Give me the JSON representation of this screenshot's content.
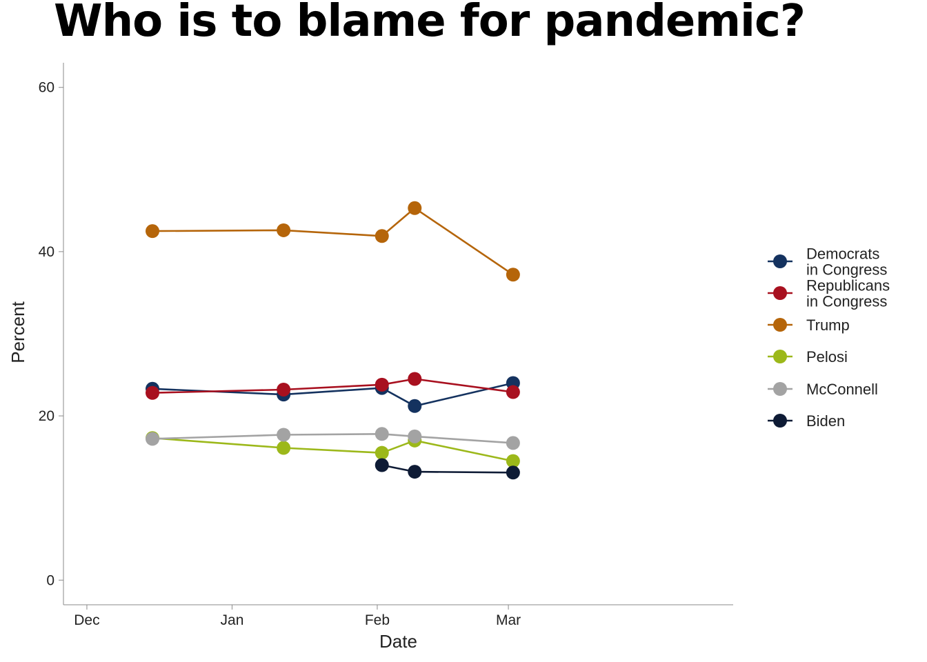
{
  "chart_data": {
    "type": "line",
    "title": "Who is to blame for pandemic?",
    "xlabel": "Date",
    "ylabel": "Percent",
    "x_ticks": [
      "Dec",
      "Jan",
      "Feb",
      "Mar"
    ],
    "x_tick_dates": [
      "2020-12-01",
      "2021-01-01",
      "2021-02-01",
      "2021-03-01"
    ],
    "xlim": [
      "2020-11-26",
      "2021-04-18"
    ],
    "y_ticks": [
      0,
      20,
      40,
      60
    ],
    "ylim": [
      -3,
      63
    ],
    "grid": false,
    "legend_position": "right",
    "series": [
      {
        "name": "Democrats\nin Congress",
        "color": "#14325F",
        "points": [
          {
            "date": "2020-12-15",
            "value": 23.3
          },
          {
            "date": "2021-01-12",
            "value": 22.6
          },
          {
            "date": "2021-02-02",
            "value": 23.4
          },
          {
            "date": "2021-02-09",
            "value": 21.2
          },
          {
            "date": "2021-03-02",
            "value": 24.0
          }
        ]
      },
      {
        "name": "Republicans\nin Congress",
        "color": "#A8101F",
        "points": [
          {
            "date": "2020-12-15",
            "value": 22.8
          },
          {
            "date": "2021-01-12",
            "value": 23.2
          },
          {
            "date": "2021-02-02",
            "value": 23.8
          },
          {
            "date": "2021-02-09",
            "value": 24.5
          },
          {
            "date": "2021-03-02",
            "value": 22.9
          }
        ]
      },
      {
        "name": "Trump",
        "color": "#B5650A",
        "points": [
          {
            "date": "2020-12-15",
            "value": 42.5
          },
          {
            "date": "2021-01-12",
            "value": 42.6
          },
          {
            "date": "2021-02-02",
            "value": 41.9
          },
          {
            "date": "2021-02-09",
            "value": 45.3
          },
          {
            "date": "2021-03-02",
            "value": 37.2
          }
        ]
      },
      {
        "name": "Pelosi",
        "color": "#9CB81A",
        "points": [
          {
            "date": "2020-12-15",
            "value": 17.3
          },
          {
            "date": "2021-01-12",
            "value": 16.1
          },
          {
            "date": "2021-02-02",
            "value": 15.5
          },
          {
            "date": "2021-02-09",
            "value": 17.0
          },
          {
            "date": "2021-03-02",
            "value": 14.5
          }
        ]
      },
      {
        "name": "McConnell",
        "color": "#A3A3A3",
        "points": [
          {
            "date": "2020-12-15",
            "value": 17.2
          },
          {
            "date": "2021-01-12",
            "value": 17.7
          },
          {
            "date": "2021-02-02",
            "value": 17.8
          },
          {
            "date": "2021-02-09",
            "value": 17.5
          },
          {
            "date": "2021-03-02",
            "value": 16.7
          }
        ]
      },
      {
        "name": "Biden",
        "color": "#0E1B35",
        "points": [
          {
            "date": "2021-02-02",
            "value": 14.0
          },
          {
            "date": "2021-02-09",
            "value": 13.2
          },
          {
            "date": "2021-03-02",
            "value": 13.1
          }
        ]
      }
    ]
  }
}
